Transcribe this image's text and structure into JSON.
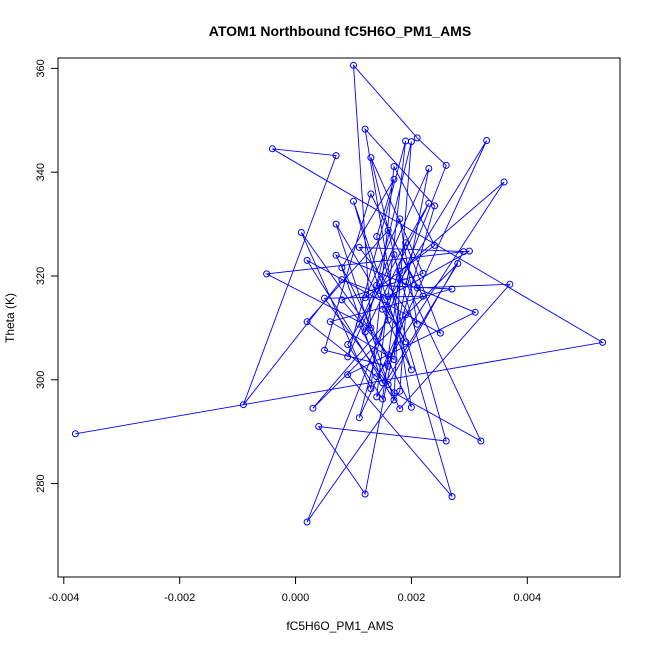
{
  "chart_data": {
    "type": "line",
    "title": "ATOM1 Northbound fC5H6O_PM1_AMS",
    "xlabel": "fC5H6O_PM1_AMS",
    "ylabel": "Theta (K)",
    "xlim": [
      -0.0041,
      0.0056
    ],
    "ylim": [
      262,
      362
    ],
    "xticks": [
      -0.004,
      -0.002,
      0.0,
      0.002,
      0.004
    ],
    "xtick_labels": [
      "-0.004",
      "-0.002",
      "0.000",
      "0.002",
      "0.004"
    ],
    "yticks": [
      280,
      300,
      320,
      340,
      360
    ],
    "ytick_labels": [
      "280",
      "300",
      "320",
      "340",
      "360"
    ],
    "grid": false,
    "markers": "open-circle",
    "color": "#0000ff",
    "series": [
      {
        "x": [
          -0.0038,
          0.0053,
          -0.0004,
          0.0007,
          -0.0009,
          0.0008,
          0.0016,
          0.003,
          -0.0005,
          0.0013,
          0.001,
          0.0021,
          0.0026,
          0.0002,
          0.0018,
          0.0019,
          0.0015,
          0.0008,
          0.0017,
          0.0014,
          0.0027,
          0.0009,
          0.0031,
          0.0007,
          0.002,
          0.0012,
          0.0024,
          0.0016,
          0.0005,
          0.0013,
          0.0021,
          0.0037,
          0.0018,
          0.0011,
          0.0023,
          0.0012,
          0.0004,
          0.0026,
          0.0017,
          0.0009,
          0.0019,
          0.0014,
          0.0028,
          0.0003,
          0.0016,
          0.001,
          0.002,
          0.0015,
          0.0033,
          0.0011,
          0.0019,
          0.0025,
          0.0002,
          0.0017,
          0.0018,
          0.0013,
          0.0022,
          0.0008,
          0.0016,
          0.0001,
          0.0013,
          0.0017,
          0.0024,
          0.0012,
          0.0018,
          0.0021,
          0.0011,
          0.0029,
          0.0016,
          0.0007,
          0.0019,
          0.0014,
          0.0027,
          0.0006,
          0.0017,
          0.002,
          0.0012,
          0.0023,
          0.0009,
          0.0015,
          0.0018,
          0.0036,
          0.0014,
          0.0002,
          0.0016,
          0.0022,
          0.0005,
          0.0017,
          0.0032,
          0.0019
        ],
        "y": [
          289.6,
          307.2,
          344.5,
          343.2,
          295.2,
          319.3,
          316.0,
          324.8,
          320.4,
          310.0,
          360.6,
          346.6,
          341.3,
          272.6,
          297.8,
          312.5,
          299.4,
          321.6,
          338.6,
          327.6,
          277.5,
          301.0,
          313.0,
          324.0,
          294.7,
          348.3,
          333.5,
          302.6,
          305.7,
          335.8,
          317.7,
          318.4,
          294.4,
          310.7,
          340.7,
          278.0,
          291.0,
          288.2,
          324.1,
          304.4,
          346.0,
          296.7,
          322.4,
          294.5,
          311.5,
          334.4,
          301.9,
          313.6,
          346.1,
          292.7,
          326.4,
          309.0,
          323.0,
          296.1,
          319.6,
          342.8,
          320.5,
          315.4,
          304.8,
          328.4,
          298.3,
          341.1,
          325.9,
          315.8,
          331.0,
          310.7,
          325.5,
          324.7,
          299.1,
          330.0,
          307.3,
          318.2,
          317.5,
          311.2,
          303.9,
          345.9,
          309.2,
          334.0,
          306.8,
          296.3,
          320.9,
          338.1,
          300.6,
          311.2,
          328.8,
          316.1,
          315.7,
          297.5,
          288.2,
          318.9
        ]
      }
    ]
  }
}
